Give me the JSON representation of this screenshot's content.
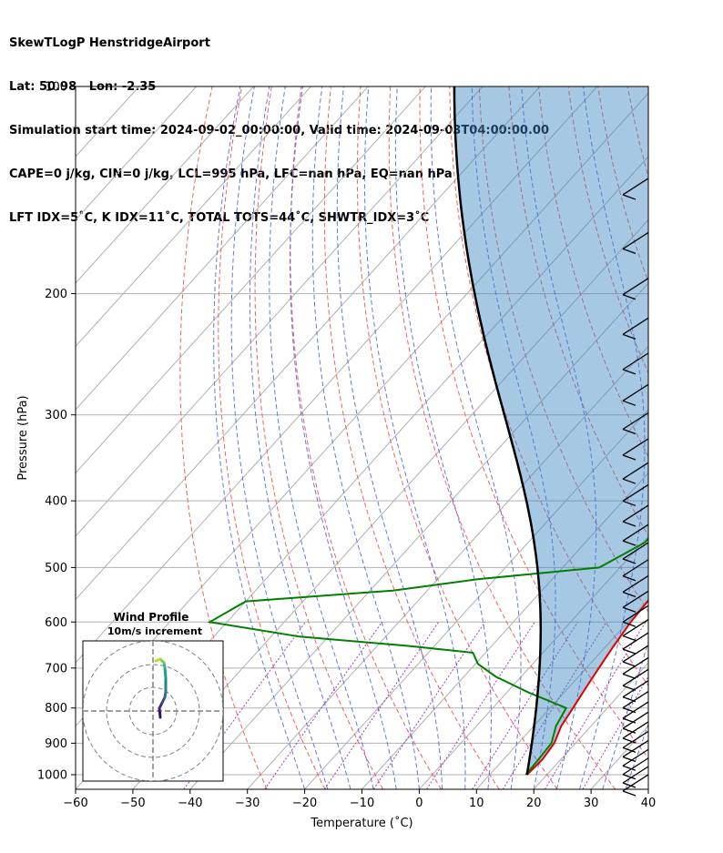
{
  "header": {
    "line1": "SkewTLogP HenstridgeAirport",
    "line2": "Lat: 50.98   Lon: -2.35",
    "line3": "Simulation start time: 2024-09-02_00:00:00, Valid time: 2024-09-03T04:00:00.00",
    "line4": "CAPE=0 j/kg, CIN=0 j/kg, LCL=995 hPa, LFC=nan hPa, EQ=nan hPa",
    "line5": "LFT IDX=5˚C, K IDX=11˚C, TOTAL TOTS=44˚C, SHWTR_IDX=3˚C"
  },
  "chart_data": {
    "type": "line",
    "subtype": "skew-t log-p",
    "xlabel": "Temperature (˚C)",
    "ylabel": "Pressure (hPa)",
    "xlim": [
      -60,
      40
    ],
    "ylim_pressure": [
      1050,
      100
    ],
    "y_scale": "log",
    "grid": true,
    "x_ticks": [
      -60,
      -50,
      -40,
      -30,
      -20,
      -10,
      0,
      10,
      20,
      30,
      40
    ],
    "x_tick_labels": [
      "−60",
      "−50",
      "−40",
      "−30",
      "−20",
      "−10",
      "0",
      "10",
      "20",
      "30",
      "40"
    ],
    "y_ticks": [
      100,
      200,
      300,
      400,
      500,
      600,
      700,
      800,
      900,
      1000
    ],
    "y_tick_labels": [
      "100",
      "200",
      "300",
      "400",
      "500",
      "600",
      "700",
      "800",
      "900",
      "1000"
    ],
    "series": [
      {
        "role": "temperature",
        "color": "#e00000",
        "points": [
          [
            1000,
            16.5
          ],
          [
            950,
            16.8
          ],
          [
            900,
            16.3
          ],
          [
            850,
            14.8
          ],
          [
            800,
            14
          ],
          [
            750,
            13.1
          ],
          [
            700,
            12.2
          ],
          [
            650,
            11.3
          ],
          [
            600,
            10.5
          ],
          [
            550,
            10.1
          ],
          [
            500,
            9
          ],
          [
            450,
            5.2
          ],
          [
            400,
            2
          ],
          [
            350,
            0.3
          ],
          [
            300,
            -5.2
          ],
          [
            270,
            -6.2
          ],
          [
            250,
            -5.2
          ],
          [
            230,
            -4.9
          ],
          [
            210,
            -3.2
          ],
          [
            200,
            -2.1
          ],
          [
            180,
            3.7
          ],
          [
            170,
            7.8
          ],
          [
            160,
            8.3
          ],
          [
            150,
            9.1
          ],
          [
            130,
            9.8
          ],
          [
            120,
            10.2
          ],
          [
            110,
            14.1
          ],
          [
            100,
            15.6
          ]
        ]
      },
      {
        "role": "dewpoint",
        "color": "#008000",
        "points": [
          [
            1000,
            16.3
          ],
          [
            950,
            16.1
          ],
          [
            900,
            15.8
          ],
          [
            850,
            13.9
          ],
          [
            800,
            12.8
          ],
          [
            760,
            3.9
          ],
          [
            720,
            -4.5
          ],
          [
            690,
            -9.6
          ],
          [
            665,
            -12.2
          ],
          [
            650,
            -24.6
          ],
          [
            630,
            -45
          ],
          [
            600,
            -63
          ],
          [
            560,
            -60
          ],
          [
            540,
            -36
          ],
          [
            520,
            -23
          ],
          [
            500,
            -3.6
          ],
          [
            460,
            0.4
          ],
          [
            420,
            0.4
          ],
          [
            380,
            -3.8
          ],
          [
            360,
            -0.1
          ],
          [
            340,
            -0.2
          ],
          [
            320,
            -4.2
          ],
          [
            290,
            -3.7
          ],
          [
            270,
            -4.3
          ],
          [
            240,
            -5.4
          ],
          [
            210,
            -3.5
          ],
          [
            200,
            -3.4
          ],
          [
            190,
            -7
          ],
          [
            180,
            -14.3
          ],
          [
            165,
            -18.1
          ],
          [
            130,
            -10.2
          ],
          [
            100,
            2.9
          ]
        ]
      },
      {
        "role": "parcel",
        "color": "#000000",
        "points": [
          [
            1000,
            16.5
          ],
          [
            995,
            16.4
          ]
        ]
      }
    ],
    "shading": "CAPE/CIN region between parcel and environmental temperature",
    "hodograph": {
      "title": "Wind Profile",
      "subtitle": "10m/s increment"
    }
  }
}
